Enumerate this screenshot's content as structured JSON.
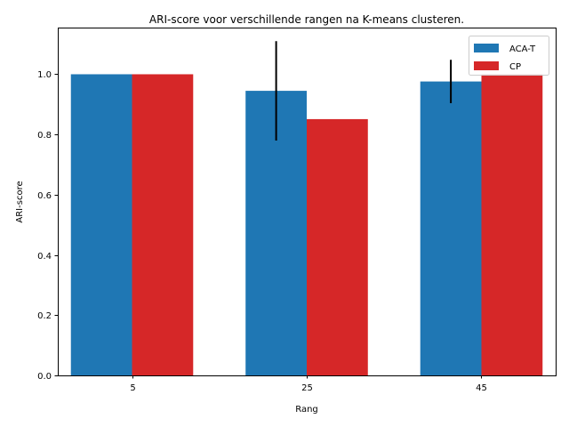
{
  "chart_data": {
    "type": "bar",
    "title": "ARI-score voor verschillende rangen na K-means clusteren.",
    "xlabel": "Rang",
    "ylabel": "ARI-score",
    "categories": [
      "5",
      "25",
      "45"
    ],
    "ylim": [
      0,
      1.155
    ],
    "yticks": [
      "0.0",
      "0.2",
      "0.4",
      "0.6",
      "0.8",
      "1.0"
    ],
    "grid": false,
    "legend_position": "top-right",
    "series": [
      {
        "name": "ACA-T",
        "color": "#1f77b4",
        "values": [
          1.0,
          0.945,
          0.976
        ],
        "errors": [
          0.0,
          0.165,
          0.072
        ]
      },
      {
        "name": "CP",
        "color": "#d62728",
        "values": [
          1.0,
          0.851,
          1.0
        ],
        "errors": [
          0.0,
          0.0,
          0.0
        ]
      }
    ]
  }
}
